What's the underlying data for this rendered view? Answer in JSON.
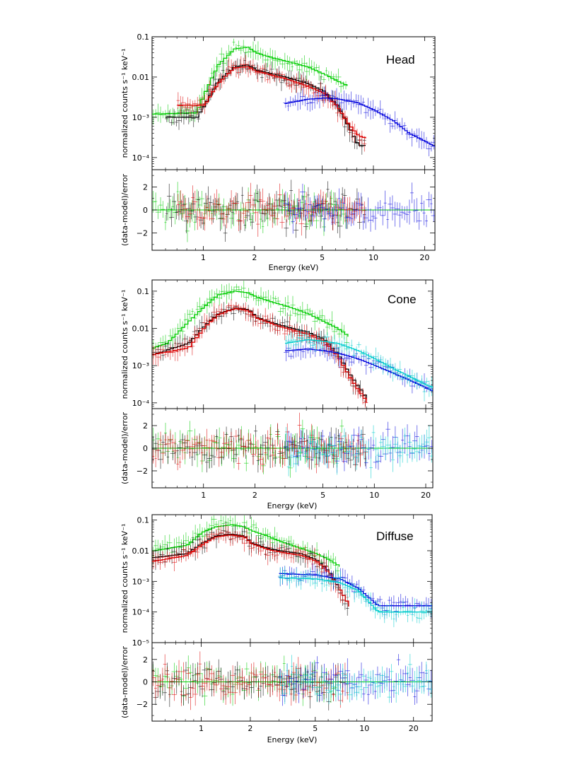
{
  "chart_data": [
    {
      "type": "line",
      "title": "Head",
      "xlabel": "Energy (keV)",
      "ylabel": "normalized counts s⁻¹ keV⁻¹",
      "residual_ylabel": "(data-model)/error",
      "xscale": "log",
      "yscale": "log",
      "xlim": [
        0.5,
        23
      ],
      "ylim": [
        5e-05,
        0.1
      ],
      "yticks": [
        0.0001,
        0.001,
        0.01,
        0.1
      ],
      "ytick_labels": [
        "10⁻⁴",
        "10⁻³",
        "0.01",
        "0.1"
      ],
      "xticks": [
        1,
        2,
        5,
        10,
        20
      ],
      "xtick_labels": [
        "1",
        "2",
        "5",
        "10",
        "20"
      ],
      "residual_ylim": [
        -3.5,
        3.5
      ],
      "residual_yticks": [
        -2,
        0,
        2
      ],
      "residual_ytick_labels": [
        "−2",
        "0",
        "2"
      ],
      "series": [
        {
          "name": "green",
          "color": "#00cc00",
          "x": [
            0.5,
            0.9,
            1.0,
            1.2,
            1.5,
            1.8,
            2.0,
            2.5,
            3.0,
            4.0,
            5.0,
            6.0,
            7.0
          ],
          "y": [
            0.0012,
            0.0013,
            0.004,
            0.02,
            0.05,
            0.055,
            0.04,
            0.03,
            0.025,
            0.018,
            0.012,
            0.008,
            0.006
          ]
        },
        {
          "name": "black",
          "color": "#000000",
          "x": [
            0.6,
            0.9,
            1.0,
            1.2,
            1.5,
            1.8,
            2.0,
            2.5,
            3.0,
            4.0,
            5.0,
            6.0,
            7.0,
            8.0,
            9.0
          ],
          "y": [
            0.001,
            0.001,
            0.002,
            0.008,
            0.018,
            0.02,
            0.015,
            0.012,
            0.01,
            0.007,
            0.0045,
            0.002,
            0.0006,
            0.0002,
            0.0002
          ]
        },
        {
          "name": "red",
          "color": "#dd0000",
          "x": [
            0.7,
            0.9,
            1.0,
            1.2,
            1.5,
            1.8,
            2.0,
            2.5,
            3.0,
            4.0,
            5.0,
            6.0,
            7.0,
            8.0,
            9.0
          ],
          "y": [
            0.002,
            0.002,
            0.002,
            0.007,
            0.017,
            0.018,
            0.014,
            0.011,
            0.009,
            0.006,
            0.004,
            0.0019,
            0.0007,
            0.00035,
            0.0003
          ]
        },
        {
          "name": "blue",
          "color": "#0000dd",
          "x": [
            3.0,
            4.0,
            5.0,
            6.0,
            8.0,
            10.0,
            13.0,
            16.0,
            20.0,
            23.0
          ],
          "y": [
            0.0022,
            0.0028,
            0.003,
            0.0029,
            0.0023,
            0.0015,
            0.0008,
            0.0004,
            0.00025,
            0.00018
          ]
        }
      ]
    },
    {
      "type": "line",
      "title": "Cone",
      "xlabel": "Energy (keV)",
      "ylabel": "normalized counts s⁻¹ keV⁻¹",
      "residual_ylabel": "(data-model)/error",
      "xscale": "log",
      "yscale": "log",
      "xlim": [
        0.5,
        22
      ],
      "ylim": [
        7e-05,
        0.2
      ],
      "yticks": [
        0.0001,
        0.001,
        0.01,
        0.1
      ],
      "ytick_labels": [
        "10⁻⁴",
        "10⁻³",
        "0.01",
        "0.1"
      ],
      "xticks": [
        1,
        2,
        5,
        10,
        20
      ],
      "xtick_labels": [
        "1",
        "2",
        "5",
        "10",
        "20"
      ],
      "residual_ylim": [
        -3.5,
        3.5
      ],
      "residual_yticks": [
        -2,
        0,
        2
      ],
      "residual_ytick_labels": [
        "−2",
        "0",
        "2"
      ],
      "series": [
        {
          "name": "green",
          "color": "#00cc00",
          "x": [
            0.5,
            0.6,
            0.7,
            0.8,
            1.0,
            1.2,
            1.5,
            1.8,
            2.0,
            2.5,
            3.0,
            4.0,
            5.0,
            6.0,
            7.0
          ],
          "y": [
            0.003,
            0.004,
            0.008,
            0.015,
            0.04,
            0.08,
            0.1,
            0.09,
            0.07,
            0.05,
            0.04,
            0.025,
            0.015,
            0.01,
            0.006
          ]
        },
        {
          "name": "black",
          "color": "#000000",
          "x": [
            0.5,
            0.8,
            1.0,
            1.2,
            1.5,
            1.8,
            2.0,
            2.5,
            3.0,
            4.0,
            5.0,
            6.0,
            7.0,
            8.0,
            9.0
          ],
          "y": [
            0.002,
            0.004,
            0.012,
            0.025,
            0.035,
            0.032,
            0.02,
            0.014,
            0.011,
            0.008,
            0.005,
            0.002,
            0.0006,
            0.00025,
            0.00012
          ]
        },
        {
          "name": "red",
          "color": "#dd0000",
          "x": [
            0.5,
            0.8,
            1.0,
            1.2,
            1.5,
            1.8,
            2.0,
            2.5,
            3.0,
            4.0,
            5.0,
            6.0,
            7.0,
            8.0,
            9.0
          ],
          "y": [
            0.002,
            0.003,
            0.011,
            0.024,
            0.034,
            0.03,
            0.019,
            0.013,
            0.01,
            0.007,
            0.0045,
            0.0018,
            0.0005,
            0.0002,
            0.0001
          ]
        },
        {
          "name": "blue",
          "color": "#0000dd",
          "x": [
            3.0,
            4.0,
            5.0,
            6.0,
            8.0,
            10.0,
            13.0,
            16.0,
            20.0,
            22.0
          ],
          "y": [
            0.0025,
            0.0028,
            0.0025,
            0.0022,
            0.0015,
            0.001,
            0.0006,
            0.0004,
            0.00025,
            0.0002
          ]
        },
        {
          "name": "cyan",
          "color": "#00cccc",
          "x": [
            3.0,
            4.0,
            5.0,
            6.0,
            8.0,
            10.0,
            13.0,
            16.0,
            20.0,
            22.0
          ],
          "y": [
            0.004,
            0.005,
            0.0045,
            0.004,
            0.0025,
            0.0015,
            0.0008,
            0.0005,
            0.0003,
            0.00025
          ]
        }
      ]
    },
    {
      "type": "line",
      "title": "Diffuse",
      "xlabel": "Energy (keV)",
      "ylabel": "normalized counts s⁻¹ keV⁻¹",
      "residual_ylabel": "(data-model)/error",
      "xscale": "log",
      "yscale": "log",
      "xlim": [
        0.5,
        26
      ],
      "ylim": [
        1e-05,
        0.15
      ],
      "yticks": [
        1e-05,
        0.0001,
        0.001,
        0.01,
        0.1
      ],
      "ytick_labels": [
        "10⁻⁵",
        "10⁻⁴",
        "10⁻³",
        "0.01",
        "0.1"
      ],
      "xticks": [
        1,
        2,
        5,
        10,
        20
      ],
      "xtick_labels": [
        "1",
        "2",
        "5",
        "10",
        "20"
      ],
      "residual_ylim": [
        -3.5,
        3.5
      ],
      "residual_yticks": [
        -2,
        0,
        2
      ],
      "residual_ytick_labels": [
        "−2",
        "0",
        "2"
      ],
      "series": [
        {
          "name": "green",
          "color": "#00cc00",
          "x": [
            0.5,
            0.8,
            1.0,
            1.2,
            1.5,
            1.8,
            2.0,
            2.5,
            3.0,
            4.0,
            5.0,
            6.0,
            7.0
          ],
          "y": [
            0.01,
            0.015,
            0.04,
            0.06,
            0.07,
            0.06,
            0.045,
            0.03,
            0.02,
            0.012,
            0.008,
            0.005,
            0.003
          ]
        },
        {
          "name": "black",
          "color": "#000000",
          "x": [
            0.5,
            0.8,
            1.0,
            1.2,
            1.5,
            1.8,
            2.0,
            2.5,
            3.0,
            4.0,
            5.0,
            6.0,
            7.0,
            8.0
          ],
          "y": [
            0.006,
            0.008,
            0.018,
            0.03,
            0.035,
            0.03,
            0.018,
            0.012,
            0.01,
            0.008,
            0.005,
            0.002,
            0.0005,
            0.00015
          ]
        },
        {
          "name": "red",
          "color": "#dd0000",
          "x": [
            0.5,
            0.8,
            1.0,
            1.2,
            1.5,
            1.8,
            2.0,
            2.5,
            3.0,
            4.0,
            5.0,
            6.0,
            7.0,
            8.0
          ],
          "y": [
            0.0045,
            0.007,
            0.016,
            0.028,
            0.033,
            0.028,
            0.017,
            0.011,
            0.009,
            0.007,
            0.0045,
            0.0018,
            0.0005,
            0.00015
          ]
        },
        {
          "name": "blue",
          "color": "#0000dd",
          "x": [
            3.0,
            5.0,
            7.0,
            9.0,
            12.0,
            26.0
          ],
          "y": [
            0.0018,
            0.0016,
            0.0012,
            0.0006,
            0.00016,
            0.00016
          ]
        },
        {
          "name": "cyan",
          "color": "#00cccc",
          "x": [
            3.0,
            5.0,
            7.0,
            9.0,
            12.0,
            26.0
          ],
          "y": [
            0.0013,
            0.0012,
            0.0009,
            0.0005,
            0.0001,
            0.0001
          ]
        }
      ]
    }
  ]
}
